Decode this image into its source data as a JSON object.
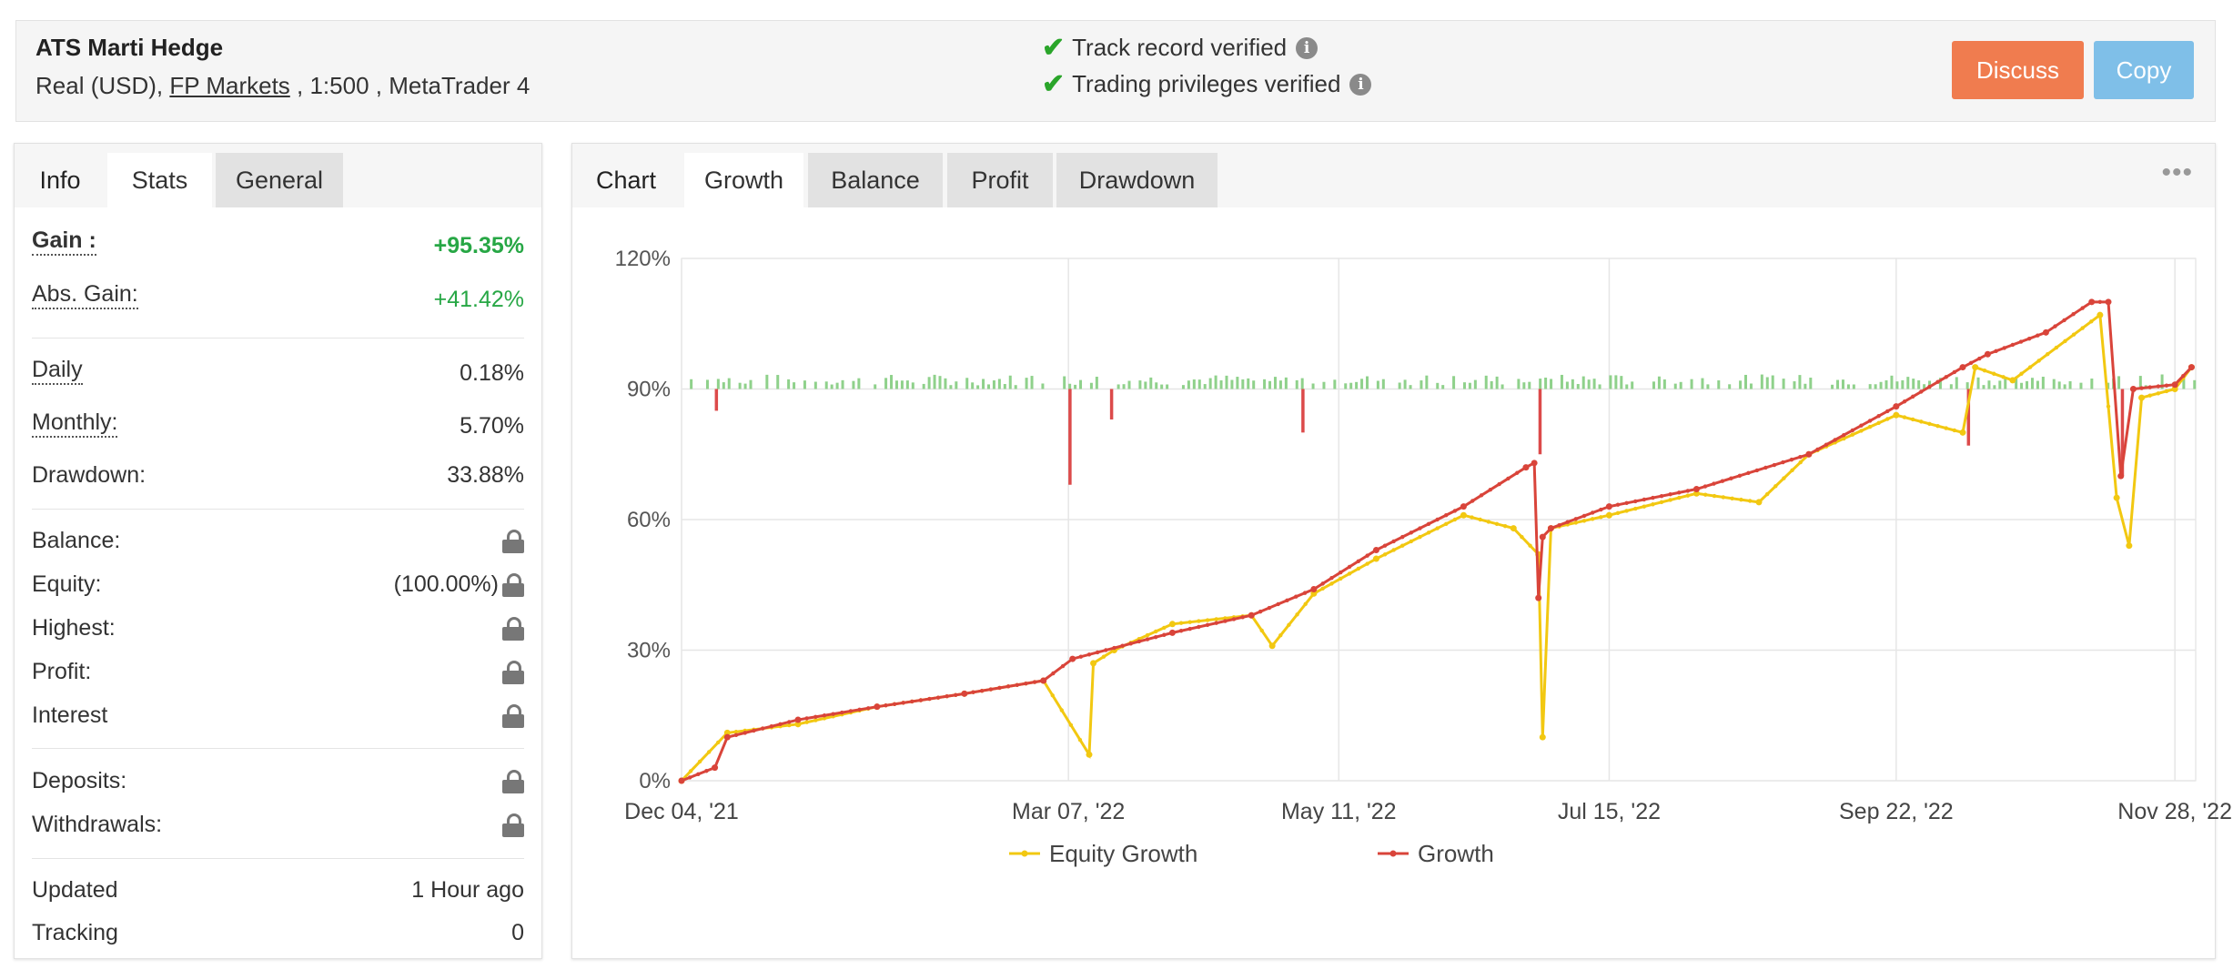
{
  "account": {
    "name": "ATS Marti Hedge",
    "desc_prefix": "Real (USD), ",
    "broker": "FP Markets",
    "desc_suffix": " , 1:500 , MetaTrader 4"
  },
  "verification": {
    "track_record": "Track record verified",
    "trading_privileges": "Trading privileges verified",
    "check_icon": "check-icon",
    "info_icon": "info-icon"
  },
  "buttons": {
    "discuss": "Discuss",
    "copy": "Copy"
  },
  "left_tabs": [
    "Info",
    "Stats",
    "General"
  ],
  "stats": {
    "gain": {
      "label": "Gain :",
      "value": "+95.35%"
    },
    "abs_gain": {
      "label": "Abs. Gain:",
      "value": "+41.42%"
    },
    "daily": {
      "label": "Daily",
      "value": "0.18%"
    },
    "monthly": {
      "label": "Monthly:",
      "value": "5.70%"
    },
    "drawdown": {
      "label": "Drawdown:",
      "value": "33.88%"
    },
    "balance": {
      "label": "Balance:"
    },
    "equity": {
      "label": "Equity:",
      "value": "(100.00%)"
    },
    "highest": {
      "label": "Highest:"
    },
    "profit": {
      "label": "Profit:"
    },
    "interest": {
      "label": "Interest"
    },
    "deposits": {
      "label": "Deposits:"
    },
    "withdrawals": {
      "label": "Withdrawals:"
    },
    "updated": {
      "label": "Updated",
      "value": "1 Hour ago"
    },
    "tracking": {
      "label": "Tracking",
      "value": "0"
    }
  },
  "chart_tabs": [
    "Chart",
    "Growth",
    "Balance",
    "Profit",
    "Drawdown"
  ],
  "more_icon": "more-dots-icon",
  "colors": {
    "equity": "#f2c811",
    "growth": "#d9443a",
    "bar_pos": "#8fd18b",
    "bar_neg": "#dc4a4a",
    "discuss": "#f07c4f",
    "copy": "#7fbfe8",
    "gain": "#27a745"
  },
  "chart_data": {
    "type": "line",
    "x_tick_labels": [
      "Dec 04, '21",
      "Mar 07, '22",
      "May 11, '22",
      "Jul 15, '22",
      "Sep 22, '22",
      "Nov 28, '22"
    ],
    "y_tick_labels": [
      "0%",
      "30%",
      "60%",
      "90%",
      "120%"
    ],
    "ylim": [
      0,
      120
    ],
    "grid": true,
    "legend_position": "bottom",
    "series": [
      {
        "name": "Equity Growth",
        "x": [
          "2021-12-04",
          "2021-12-15",
          "2022-01-01",
          "2022-01-20",
          "2022-02-10",
          "2022-03-01",
          "2022-03-12",
          "2022-03-13",
          "2022-03-18",
          "2022-04-01",
          "2022-04-20",
          "2022-04-25",
          "2022-05-05",
          "2022-05-20",
          "2022-06-10",
          "2022-06-22",
          "2022-06-28",
          "2022-06-29",
          "2022-07-01",
          "2022-07-15",
          "2022-08-05",
          "2022-08-20",
          "2022-09-01",
          "2022-09-22",
          "2022-10-08",
          "2022-10-11",
          "2022-10-20",
          "2022-11-10",
          "2022-11-14",
          "2022-11-17",
          "2022-11-20",
          "2022-11-28",
          "2022-12-02"
        ],
        "y": [
          0,
          11,
          13,
          17,
          20,
          23,
          6,
          27,
          30,
          36,
          38,
          31,
          43,
          51,
          61,
          58,
          52,
          10,
          58,
          61,
          66,
          64,
          75,
          84,
          80,
          95,
          92,
          107,
          65,
          54,
          88,
          90,
          95
        ]
      },
      {
        "name": "Growth",
        "x": [
          "2021-12-04",
          "2021-12-12",
          "2021-12-15",
          "2022-01-01",
          "2022-01-20",
          "2022-02-10",
          "2022-03-01",
          "2022-03-08",
          "2022-04-01",
          "2022-04-20",
          "2022-05-05",
          "2022-05-20",
          "2022-06-10",
          "2022-06-25",
          "2022-06-27",
          "2022-06-28",
          "2022-06-29",
          "2022-07-01",
          "2022-07-15",
          "2022-08-05",
          "2022-09-01",
          "2022-09-22",
          "2022-10-08",
          "2022-10-14",
          "2022-10-28",
          "2022-11-08",
          "2022-11-12",
          "2022-11-15",
          "2022-11-18",
          "2022-11-28",
          "2022-12-02"
        ],
        "y": [
          0,
          3,
          10,
          14,
          17,
          20,
          23,
          28,
          34,
          38,
          44,
          53,
          63,
          72,
          73,
          42,
          56,
          58,
          63,
          67,
          75,
          86,
          95,
          98,
          103,
          110,
          110,
          70,
          90,
          91,
          95
        ]
      }
    ],
    "bars": {
      "note": "daily gain/loss bars drawn around the 90% line",
      "baseline": 90,
      "negative_spikes": [
        {
          "x": "2021-12-12",
          "y": 85
        },
        {
          "x": "2022-03-07",
          "y": 68
        },
        {
          "x": "2022-03-17",
          "y": 83
        },
        {
          "x": "2022-05-02",
          "y": 80
        },
        {
          "x": "2022-06-28",
          "y": 75
        },
        {
          "x": "2022-10-09",
          "y": 77
        },
        {
          "x": "2022-11-15",
          "y": 70
        }
      ]
    }
  }
}
